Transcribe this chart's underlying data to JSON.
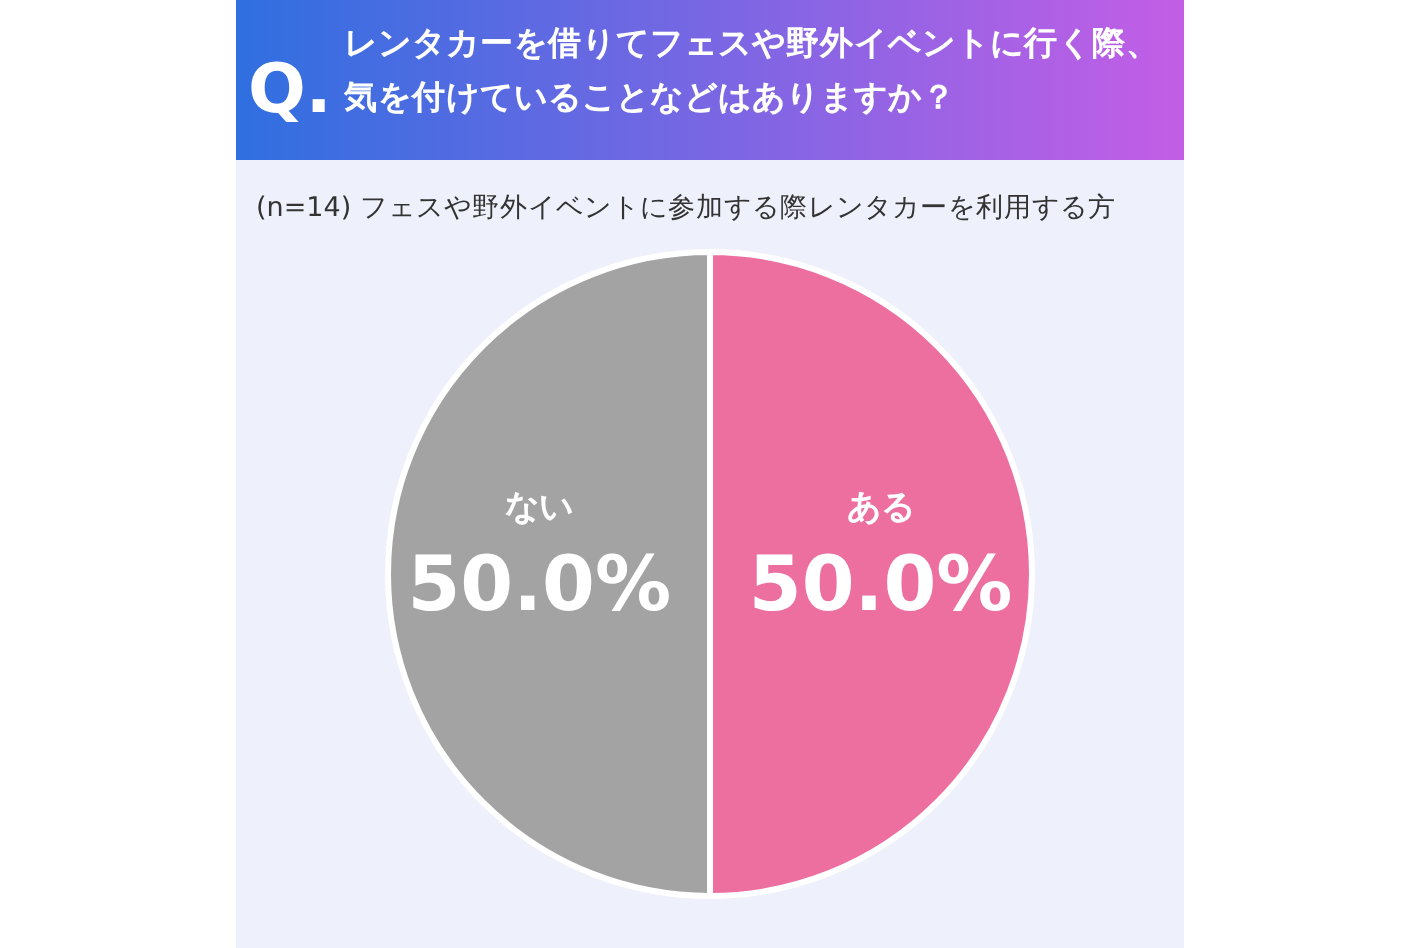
{
  "chart_data": {
    "type": "pie",
    "title": "レンタカーを借りてフェスや野外イベントに行く際、気を付けていることなどはありますか？",
    "subtitle": "(n=14) フェスや野外イベントに参加する際レンタカーを利用する方",
    "annotations": [
      "Q."
    ],
    "categories": [
      "ある",
      "ない"
    ],
    "values": [
      50.0,
      50.0
    ],
    "value_labels": [
      "50.0%",
      "50.0%"
    ],
    "colors": [
      "#ec6fa0",
      "#a3a3a3"
    ],
    "legend": false
  }
}
